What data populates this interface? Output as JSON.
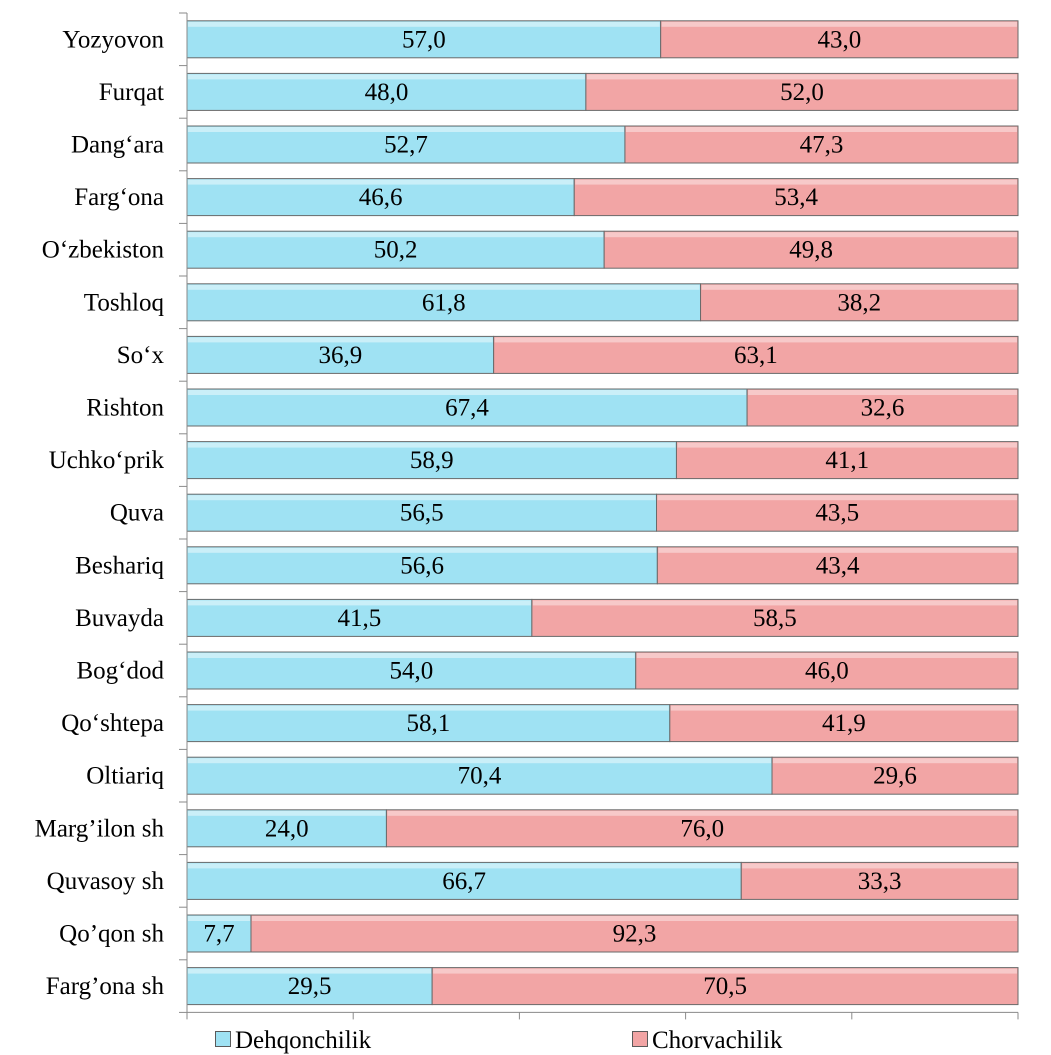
{
  "chart_data": {
    "type": "bar",
    "orientation": "horizontal",
    "stacked": true,
    "percent_stacked": true,
    "categories": [
      "Yozyovon",
      "Furqat",
      "Dang‘ara",
      "Farg‘ona",
      "O‘zbekiston",
      "Toshloq",
      "So‘x",
      "Rishton",
      "Uchko‘prik",
      "Quva",
      "Beshariq",
      "Buvayda",
      "Bog‘dod",
      "Qo‘shtepa",
      "Oltiariq",
      "Marg’ilon sh",
      "Quvasoy sh",
      "Qo’qon sh",
      "Farg’ona sh"
    ],
    "series": [
      {
        "name": "Dehqonchilik",
        "color": "#9fe2f3",
        "values": [
          57.0,
          48.0,
          52.7,
          46.6,
          50.2,
          61.8,
          36.9,
          67.4,
          58.9,
          56.5,
          56.6,
          41.5,
          54.0,
          58.1,
          70.4,
          24.0,
          66.7,
          7.7,
          29.5
        ],
        "labels": [
          "57,0",
          "48,0",
          "52,7",
          "46,6",
          "50,2",
          "61,8",
          "36,9",
          "67,4",
          "58,9",
          "56,5",
          "56,6",
          "41,5",
          "54,0",
          "58,1",
          "70,4",
          "24,0",
          "66,7",
          "7,7",
          "29,5"
        ]
      },
      {
        "name": "Chorvachilik",
        "color": "#f2a5a5",
        "values": [
          43.0,
          52.0,
          47.3,
          53.4,
          49.8,
          38.2,
          63.1,
          32.6,
          41.1,
          43.5,
          43.4,
          58.5,
          46.0,
          41.9,
          29.6,
          76.0,
          33.3,
          92.3,
          70.5
        ],
        "labels": [
          "43,0",
          "52,0",
          "47,3",
          "53,4",
          "49,8",
          "38,2",
          "63,1",
          "32,6",
          "41,1",
          "43,5",
          "43,4",
          "58,5",
          "46,0",
          "41,9",
          "29,6",
          "76,0",
          "33,3",
          "92,3",
          "70,5"
        ]
      }
    ],
    "xlim": [
      0,
      100
    ],
    "xticks": [
      "0%",
      "20%",
      "40%",
      "60%",
      "80%",
      "100%"
    ],
    "grid": false,
    "legend_position": "bottom"
  },
  "legend": {
    "item1": "Dehqonchilik",
    "item2": "Chorvachilik"
  }
}
